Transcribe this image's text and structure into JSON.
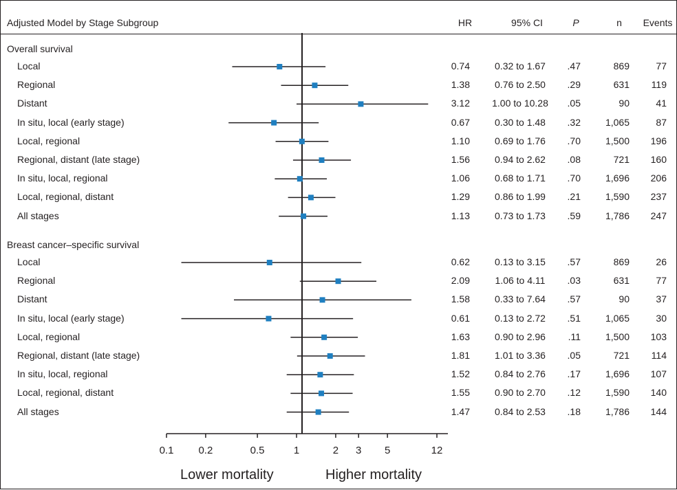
{
  "header": {
    "title": "Adjusted Model by Stage Subgroup",
    "columns": [
      "HR",
      "95% CI",
      "P",
      "n",
      "Events"
    ]
  },
  "footer": {
    "lower_label": "Lower mortality",
    "higher_label": "Higher mortality"
  },
  "chart_data": {
    "type": "forest",
    "x_scale": "log",
    "xlim": [
      0.1,
      12
    ],
    "reference_line": 1,
    "x_ticks": [
      "0.1",
      "0.2",
      "0.5",
      "1",
      "2",
      "3",
      "5",
      "12"
    ],
    "marker_color": "#1f7fc0",
    "groups": [
      {
        "title": "Overall survival",
        "rows": [
          {
            "label": "Local",
            "hr": "0.74",
            "ci": "0.32 to 1.67",
            "p": ".47",
            "n": "869",
            "events": "77",
            "hr_val": 0.74,
            "lo": 0.32,
            "hi": 1.67
          },
          {
            "label": "Regional",
            "hr": "1.38",
            "ci": "0.76 to 2.50",
            "p": ".29",
            "n": "631",
            "events": "119",
            "hr_val": 1.38,
            "lo": 0.76,
            "hi": 2.5
          },
          {
            "label": "Distant",
            "hr": "3.12",
            "ci": "1.00 to 10.28",
            "p": ".05",
            "n": "90",
            "events": "41",
            "hr_val": 3.12,
            "lo": 1.0,
            "hi": 10.28
          },
          {
            "label": "In situ, local (early stage)",
            "hr": "0.67",
            "ci": "0.30 to 1.48",
            "p": ".32",
            "n": "1,065",
            "events": "87",
            "hr_val": 0.67,
            "lo": 0.3,
            "hi": 1.48
          },
          {
            "label": "Local, regional",
            "hr": "1.10",
            "ci": "0.69 to 1.76",
            "p": ".70",
            "n": "1,500",
            "events": "196",
            "hr_val": 1.1,
            "lo": 0.69,
            "hi": 1.76
          },
          {
            "label": "Regional, distant (late stage)",
            "hr": "1.56",
            "ci": "0.94 to 2.62",
            "p": ".08",
            "n": "721",
            "events": "160",
            "hr_val": 1.56,
            "lo": 0.94,
            "hi": 2.62
          },
          {
            "label": "In situ, local, regional",
            "hr": "1.06",
            "ci": "0.68 to 1.71",
            "p": ".70",
            "n": "1,696",
            "events": "206",
            "hr_val": 1.06,
            "lo": 0.68,
            "hi": 1.71
          },
          {
            "label": "Local, regional, distant",
            "hr": "1.29",
            "ci": "0.86 to 1.99",
            "p": ".21",
            "n": "1,590",
            "events": "237",
            "hr_val": 1.29,
            "lo": 0.86,
            "hi": 1.99
          },
          {
            "label": "All stages",
            "hr": "1.13",
            "ci": "0.73 to 1.73",
            "p": ".59",
            "n": "1,786",
            "events": "247",
            "hr_val": 1.13,
            "lo": 0.73,
            "hi": 1.73
          }
        ]
      },
      {
        "title": "Breast cancer–specific survival",
        "rows": [
          {
            "label": "Local",
            "hr": "0.62",
            "ci": "0.13 to 3.15",
            "p": ".57",
            "n": "869",
            "events": "26",
            "hr_val": 0.62,
            "lo": 0.13,
            "hi": 3.15
          },
          {
            "label": "Regional",
            "hr": "2.09",
            "ci": "1.06 to 4.11",
            "p": ".03",
            "n": "631",
            "events": "77",
            "hr_val": 2.09,
            "lo": 1.06,
            "hi": 4.11
          },
          {
            "label": "Distant",
            "hr": "1.58",
            "ci": "0.33 to 7.64",
            "p": ".57",
            "n": "90",
            "events": "37",
            "hr_val": 1.58,
            "lo": 0.33,
            "hi": 7.64
          },
          {
            "label": "In situ, local (early stage)",
            "hr": "0.61",
            "ci": "0.13 to 2.72",
            "p": ".51",
            "n": "1,065",
            "events": "30",
            "hr_val": 0.61,
            "lo": 0.13,
            "hi": 2.72
          },
          {
            "label": "Local, regional",
            "hr": "1.63",
            "ci": "0.90 to 2.96",
            "p": ".11",
            "n": "1,500",
            "events": "103",
            "hr_val": 1.63,
            "lo": 0.9,
            "hi": 2.96
          },
          {
            "label": "Regional, distant (late stage)",
            "hr": "1.81",
            "ci": "1.01 to 3.36",
            "p": ".05",
            "n": "721",
            "events": "114",
            "hr_val": 1.81,
            "lo": 1.01,
            "hi": 3.36
          },
          {
            "label": "In situ, local, regional",
            "hr": "1.52",
            "ci": "0.84 to 2.76",
            "p": ".17",
            "n": "1,696",
            "events": "107",
            "hr_val": 1.52,
            "lo": 0.84,
            "hi": 2.76
          },
          {
            "label": "Local, regional, distant",
            "hr": "1.55",
            "ci": "0.90 to 2.70",
            "p": ".12",
            "n": "1,590",
            "events": "140",
            "hr_val": 1.55,
            "lo": 0.9,
            "hi": 2.7
          },
          {
            "label": "All stages",
            "hr": "1.47",
            "ci": "0.84 to 2.53",
            "p": ".18",
            "n": "1,786",
            "events": "144",
            "hr_val": 1.47,
            "lo": 0.84,
            "hi": 2.53
          }
        ]
      }
    ]
  }
}
